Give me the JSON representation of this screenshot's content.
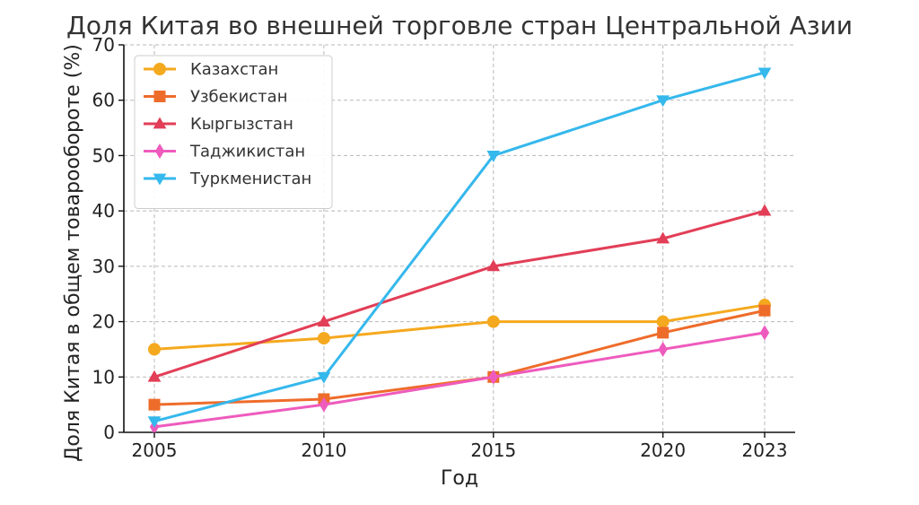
{
  "chart_data": {
    "type": "line",
    "title": "Доля Китая во внешней торговле стран Центральной Азии",
    "xlabel": "Год",
    "ylabel": "Доля Китая в общем товарообороте (%)",
    "x": [
      2005,
      2010,
      2015,
      2020,
      2023
    ],
    "x_tick_labels": [
      "2005",
      "2010",
      "2015",
      "2020",
      "2023"
    ],
    "ylim": [
      0,
      70
    ],
    "y_ticks": [
      0,
      10,
      20,
      30,
      40,
      50,
      60,
      70
    ],
    "grid": true,
    "legend_position": "upper-left",
    "series": [
      {
        "name": "Казахстан",
        "values": [
          15,
          17,
          20,
          20,
          23
        ],
        "color": "#f5a91e",
        "marker": "circle"
      },
      {
        "name": "Узбекистан",
        "values": [
          5,
          6,
          10,
          18,
          22
        ],
        "color": "#ee6c2a",
        "marker": "square"
      },
      {
        "name": "Кыргызстан",
        "values": [
          10,
          20,
          30,
          35,
          40
        ],
        "color": "#e23e57",
        "marker": "triangle-up"
      },
      {
        "name": "Таджикистан",
        "values": [
          1,
          5,
          10,
          15,
          18
        ],
        "color": "#ee5bbd",
        "marker": "diamond"
      },
      {
        "name": "Туркменистан",
        "values": [
          2,
          10,
          50,
          60,
          65
        ],
        "color": "#35b8ec",
        "marker": "triangle-down"
      }
    ]
  }
}
